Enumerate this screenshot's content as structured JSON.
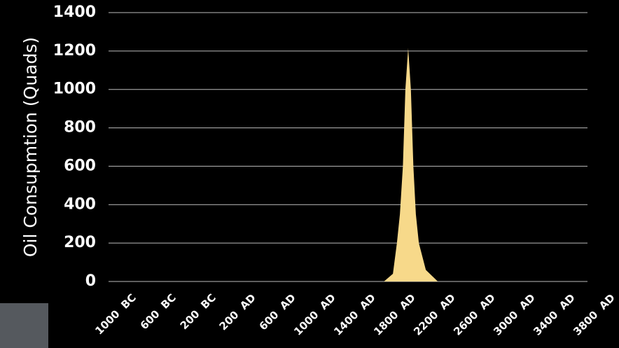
{
  "chart_data": {
    "type": "area",
    "ylabel": "Oil Consupmtion (Quads)",
    "x": [
      1760,
      1850,
      1890,
      1920,
      1950,
      1975,
      2003,
      2030,
      2055,
      2080,
      2110,
      2180,
      2300
    ],
    "values": [
      0,
      40,
      200,
      350,
      600,
      1000,
      1215,
      1000,
      600,
      350,
      200,
      60,
      0
    ],
    "color": "#f7d98a",
    "xlim": [
      -1000,
      3800
    ],
    "xticks": [
      {
        "value": -1000,
        "label": "1000  BC"
      },
      {
        "value": -600,
        "label": "600  BC"
      },
      {
        "value": -200,
        "label": "200  BC"
      },
      {
        "value": 200,
        "label": "200  AD"
      },
      {
        "value": 600,
        "label": "600  AD"
      },
      {
        "value": 1000,
        "label": "1000  AD"
      },
      {
        "value": 1400,
        "label": "1400  AD"
      },
      {
        "value": 1800,
        "label": "1800  AD"
      },
      {
        "value": 2200,
        "label": "2200  AD"
      },
      {
        "value": 2600,
        "label": "2600  AD"
      },
      {
        "value": 3000,
        "label": "3000  AD"
      },
      {
        "value": 3400,
        "label": "3400  AD"
      },
      {
        "value": 3800,
        "label": "3800  AD"
      }
    ],
    "ylim": [
      0,
      1400
    ],
    "yticks": [
      0,
      200,
      400,
      600,
      800,
      1000,
      1200,
      1400
    ],
    "grid": true
  }
}
